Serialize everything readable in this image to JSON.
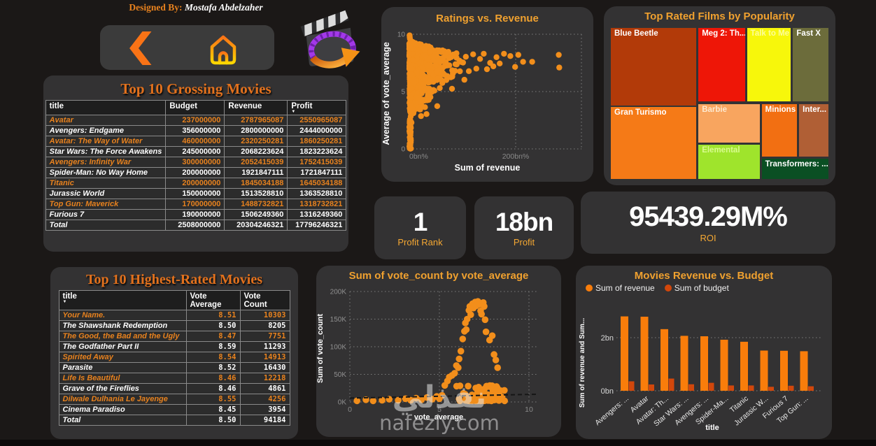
{
  "header": {
    "designed_by_label": "Designed By:",
    "designer_name": "Mostafa Abdelzaher"
  },
  "nav": {
    "back_icon": "back-chevron-icon",
    "home_icon": "home-icon",
    "logo_icon": "movie-clapperboard-icon"
  },
  "grossing_table": {
    "title": "Top 10 Grossing Movies",
    "columns": [
      "title",
      "Budget",
      "Revenue",
      "Profit"
    ],
    "sort_column_index": 3,
    "rows": [
      [
        "Avatar",
        "237000000",
        "2787965087",
        "2550965087"
      ],
      [
        "Avengers: Endgame",
        "356000000",
        "2800000000",
        "2444000000"
      ],
      [
        "Avatar: The Way of Water",
        "460000000",
        "2320250281",
        "1860250281"
      ],
      [
        "Star Wars: The Force Awakens",
        "245000000",
        "2068223624",
        "1823223624"
      ],
      [
        "Avengers: Infinity War",
        "300000000",
        "2052415039",
        "1752415039"
      ],
      [
        "Spider-Man: No Way Home",
        "200000000",
        "1921847111",
        "1721847111"
      ],
      [
        "Titanic",
        "200000000",
        "1845034188",
        "1645034188"
      ],
      [
        "Jurassic World",
        "150000000",
        "1513528810",
        "1363528810"
      ],
      [
        "Top Gun: Maverick",
        "170000000",
        "1488732821",
        "1318732821"
      ],
      [
        "Furious 7",
        "190000000",
        "1506249360",
        "1316249360"
      ]
    ],
    "total_row": [
      "Total",
      "2508000000",
      "20304246321",
      "17796246321"
    ]
  },
  "rated_table": {
    "title": "Top 10 Highest-Rated Movies",
    "columns": [
      "title",
      "Vote Average",
      "Vote Count"
    ],
    "sort_column_index": 0,
    "rows": [
      [
        "Your Name.",
        "8.51",
        "10303"
      ],
      [
        "The Shawshank Redemption",
        "8.50",
        "8205"
      ],
      [
        "The Good, the Bad and the Ugly",
        "8.47",
        "7751"
      ],
      [
        "The Godfather Part II",
        "8.59",
        "11293"
      ],
      [
        "Spirited Away",
        "8.54",
        "14913"
      ],
      [
        "Parasite",
        "8.52",
        "16430"
      ],
      [
        "Life Is Beautiful",
        "8.46",
        "12218"
      ],
      [
        "Grave of the Fireflies",
        "8.46",
        "4861"
      ],
      [
        "Dilwale Dulhania Le Jayenge",
        "8.55",
        "4256"
      ],
      [
        "Cinema Paradiso",
        "8.45",
        "3954"
      ]
    ],
    "total_row": [
      "Total",
      "8.50",
      "94184"
    ]
  },
  "kpis": [
    {
      "value": "1",
      "label": "Profit Rank"
    },
    {
      "value": "18bn",
      "label": "Profit"
    },
    {
      "value": "95439.29M%",
      "label": "ROI"
    }
  ],
  "chart_data": [
    {
      "type": "scatter",
      "title": "Ratings vs. Revenue",
      "xlabel": "Sum of revenue",
      "ylabel": "Average of vote_average",
      "x_ticks": [
        "0bn%",
        "200bn%"
      ],
      "y_ticks": [
        "0",
        "5",
        "10"
      ],
      "xlim_bn": [
        0,
        310
      ],
      "ylim": [
        0,
        10
      ],
      "dot_color": "#f28e1b",
      "grid": "dotted",
      "outlier_points_bn_vote": [
        [
          120,
          8.25
        ],
        [
          126,
          7.0
        ],
        [
          133,
          7.85
        ],
        [
          140,
          8.3
        ],
        [
          146,
          6.95
        ],
        [
          152,
          7.5
        ],
        [
          158,
          7.2
        ],
        [
          164,
          8.0
        ],
        [
          170,
          7.45
        ],
        [
          178,
          8.3
        ],
        [
          190,
          8.1
        ],
        [
          199,
          7.15
        ],
        [
          205,
          8.2
        ],
        [
          214,
          7.6
        ],
        [
          231,
          7.6
        ],
        [
          281,
          8.2
        ],
        [
          282,
          7.1
        ]
      ],
      "top_points_bn_vote": [
        [
          0.5,
          9.9
        ],
        [
          1.2,
          9.6
        ],
        [
          0.8,
          9.75
        ]
      ],
      "dense_cloud": {
        "seed": 42,
        "count": 680,
        "x_mean_bn": 22,
        "x_max_bn": 145,
        "vote_top_at0": 9.35,
        "vote_top_slope": -0.011,
        "vote_bottom_at0": 1.8,
        "vote_bottom_slope": 0.036
      },
      "left_band": {
        "seed": 9,
        "count": 170,
        "x_max_bn": 8,
        "vote_min": 3.0,
        "vote_max": 9.4
      },
      "low_strip": {
        "seed": 5,
        "count": 42,
        "x_max_bn": 3,
        "vote_min": 0,
        "vote_max": 2.6
      }
    },
    {
      "type": "treemap",
      "title": "Top Rated Films by Popularity",
      "cells": [
        {
          "label": "Blue Beetle",
          "color": "#b23a09",
          "text": "#ffffff",
          "x": 0,
          "y": 0,
          "w": 0.397,
          "h": 0.52
        },
        {
          "label": "Gran Turismo",
          "color": "#f57a17",
          "text": "#ffffff",
          "x": 0,
          "y": 0.52,
          "w": 0.397,
          "h": 0.48
        },
        {
          "label": "Meg 2: Th...",
          "color": "#ee1607",
          "text": "#ffffff",
          "x": 0.4,
          "y": 0,
          "w": 0.219,
          "h": 0.493
        },
        {
          "label": "Talk to Me",
          "color": "#f7f70b",
          "text": "#fdfd9a",
          "x": 0.622,
          "y": 0,
          "w": 0.206,
          "h": 0.493
        },
        {
          "label": "Fast X",
          "color": "#6c6c3b",
          "text": "#ffffff",
          "x": 0.832,
          "y": 0,
          "w": 0.168,
          "h": 0.493
        },
        {
          "label": "Barbie",
          "color": "#f8a55f",
          "text": "#fde9cf",
          "x": 0.4,
          "y": 0.498,
          "w": 0.286,
          "h": 0.262
        },
        {
          "label": "Elemental",
          "color": "#9fe42c",
          "text": "#d9fb90",
          "x": 0.4,
          "y": 0.765,
          "w": 0.286,
          "h": 0.235
        },
        {
          "label": "Minions",
          "color": "#f26f12",
          "text": "#ffffff",
          "x": 0.689,
          "y": 0.498,
          "w": 0.168,
          "h": 0.357
        },
        {
          "label": "Inter...",
          "color": "#b05f35",
          "text": "#ffffff",
          "x": 0.86,
          "y": 0.498,
          "w": 0.14,
          "h": 0.357
        },
        {
          "label": "Transformers: ...",
          "color": "#0a4f23",
          "text": "#ffffff",
          "x": 0.689,
          "y": 0.86,
          "w": 0.311,
          "h": 0.14
        }
      ]
    },
    {
      "type": "scatter",
      "title": "Sum of vote_count by vote_average",
      "xlabel": "vote_average",
      "ylabel": "Sum of vote_count",
      "x_ticks": [
        "0",
        "5",
        "10"
      ],
      "y_ticks": [
        "0K",
        "50K",
        "100K",
        "150K",
        "200K"
      ],
      "xlim": [
        0,
        10.4
      ],
      "ylim_k": [
        0,
        200
      ],
      "dot_color": "#f28e1b",
      "grid": "dotted",
      "arc_points_vote_countK": [
        [
          5.15,
          12
        ],
        [
          5.3,
          30
        ],
        [
          5.45,
          38
        ],
        [
          5.55,
          45
        ],
        [
          5.7,
          48
        ],
        [
          5.85,
          52
        ],
        [
          5.95,
          66
        ],
        [
          6.05,
          62
        ],
        [
          6.1,
          78
        ],
        [
          6.2,
          92
        ],
        [
          6.3,
          114
        ],
        [
          6.4,
          128
        ],
        [
          6.45,
          143
        ],
        [
          6.5,
          131
        ],
        [
          6.55,
          150
        ],
        [
          6.65,
          166
        ],
        [
          6.7,
          173
        ],
        [
          6.75,
          158
        ],
        [
          6.85,
          178
        ],
        [
          6.9,
          170
        ],
        [
          7.0,
          181
        ],
        [
          7.05,
          174
        ],
        [
          7.15,
          182
        ],
        [
          7.25,
          177
        ],
        [
          7.3,
          165
        ],
        [
          7.35,
          159
        ],
        [
          7.45,
          180
        ],
        [
          7.5,
          173
        ],
        [
          7.55,
          149
        ],
        [
          7.6,
          127
        ],
        [
          7.8,
          112
        ],
        [
          7.95,
          120
        ],
        [
          8.05,
          86
        ],
        [
          8.15,
          76
        ],
        [
          8.25,
          62
        ]
      ],
      "bottom_points_vote_countK": [
        [
          0.4,
          2
        ],
        [
          0.9,
          4
        ],
        [
          1.3,
          2
        ],
        [
          1.8,
          3
        ],
        [
          2.2,
          5
        ],
        [
          2.7,
          3
        ],
        [
          3.1,
          6
        ],
        [
          3.4,
          3
        ],
        [
          3.7,
          7
        ],
        [
          4.0,
          4
        ],
        [
          4.3,
          8
        ],
        [
          4.6,
          5
        ],
        [
          4.85,
          10
        ],
        [
          5.0,
          6
        ]
      ],
      "bottom_blob": {
        "seed": 7,
        "count": 100,
        "x_center": 7.35,
        "x_spread": 1.5,
        "x_min": 5.75,
        "x_max": 8.65,
        "y_min_k": 2,
        "y_max_k": 30
      },
      "trendline": {
        "style": "dashed",
        "color": "#161616",
        "y_start_k": 7,
        "y_end_k": 14
      }
    },
    {
      "type": "bar",
      "title": "Movies Revenue vs. Budget",
      "xlabel": "title",
      "ylabel": "Sum of revenue and Sum...",
      "y_ticks": [
        "0bn",
        "2bn"
      ],
      "ylim_bn": [
        0,
        3.05
      ],
      "grid": "dotted",
      "legend_position": "top-left",
      "categories": [
        "Avengers: ...",
        "Avatar",
        "Avatar: Th...",
        "Star Wars: ...",
        "Avengers: ...",
        "Spider-Ma...",
        "Titanic",
        "Jurassic W...",
        "Furious 7",
        "Top Gun: ..."
      ],
      "series": [
        {
          "name": "Sum of revenue",
          "color": "#f97d0b",
          "values_bn": [
            2.8,
            2.788,
            2.32,
            2.068,
            2.052,
            1.922,
            1.845,
            1.514,
            1.506,
            1.489
          ]
        },
        {
          "name": "Sum of budget",
          "color": "#d2470b",
          "values_bn": [
            0.356,
            0.237,
            0.46,
            0.245,
            0.3,
            0.2,
            0.2,
            0.15,
            0.19,
            0.17
          ]
        }
      ]
    }
  ],
  "watermark": {
    "arabic": "نفذلي",
    "domain": "nafezly.com"
  },
  "colors": {
    "page_bg": "#1b1817",
    "card_bg": "#333233",
    "accent_orange": "#e8821e",
    "title_orange": "#f0a12f",
    "serif_title_orange": "#e2711d",
    "kpi_label_orange": "#f5a833",
    "dot_orange": "#f28e1b",
    "budget_bar": "#d2470b",
    "revenue_bar": "#f97d0b"
  }
}
